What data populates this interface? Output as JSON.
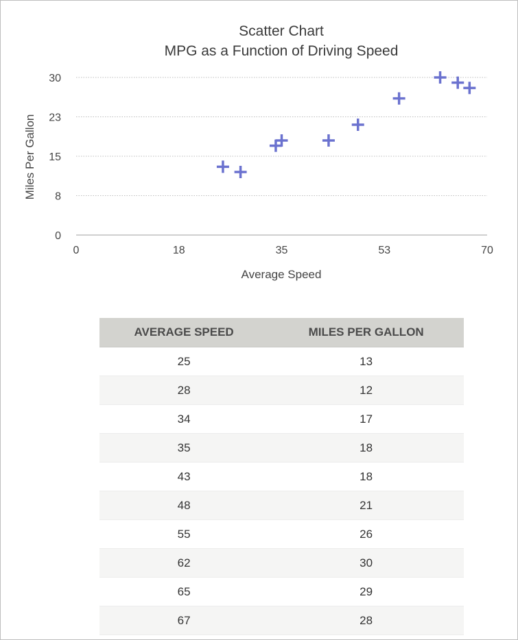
{
  "chart_data": {
    "type": "scatter",
    "title": "Scatter Chart",
    "subtitle": "MPG as a Function of Driving Speed",
    "xlabel": "Average Speed",
    "ylabel": "Miles Per Gallon",
    "xlim": [
      0,
      70
    ],
    "ylim": [
      0,
      30
    ],
    "x_ticks": [
      0,
      17.5,
      35,
      52.5,
      70
    ],
    "x_tick_labels": [
      "0",
      "18",
      "35",
      "53",
      "70"
    ],
    "y_ticks": [
      0,
      7.5,
      15,
      22.5,
      30
    ],
    "y_tick_labels": [
      "0",
      "8",
      "15",
      "23",
      "30"
    ],
    "grid": "horizontal dotted",
    "marker": "plus",
    "color": "#6b72cf",
    "x": [
      25,
      28,
      34,
      35,
      43,
      48,
      55,
      62,
      65,
      67
    ],
    "y": [
      13,
      12,
      17,
      18,
      18,
      21,
      26,
      30,
      29,
      28
    ]
  },
  "table": {
    "headers": [
      "AVERAGE SPEED",
      "MILES PER GALLON"
    ],
    "rows": [
      [
        "25",
        "13"
      ],
      [
        "28",
        "12"
      ],
      [
        "34",
        "17"
      ],
      [
        "35",
        "18"
      ],
      [
        "43",
        "18"
      ],
      [
        "48",
        "21"
      ],
      [
        "55",
        "26"
      ],
      [
        "62",
        "30"
      ],
      [
        "65",
        "29"
      ],
      [
        "67",
        "28"
      ]
    ]
  }
}
